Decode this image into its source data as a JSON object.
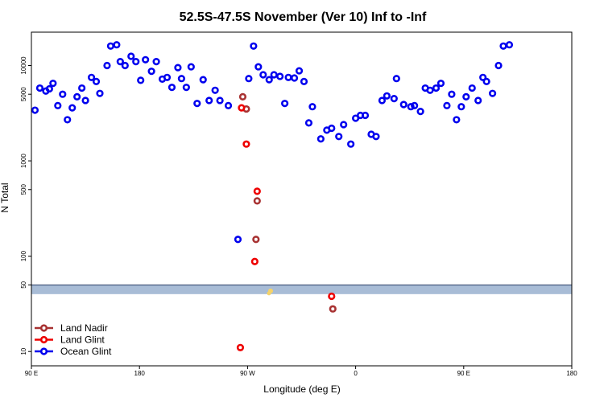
{
  "chart_data": {
    "type": "scatter",
    "title": "52.5S-47.5S November (Ver 10)   Inf to -Inf",
    "xlabel": "Longitude (deg E)",
    "ylabel": "N Total",
    "xlim": [
      -90,
      360
    ],
    "ylim_log10": [
      0.85,
      4.35
    ],
    "y_scale": "log",
    "x_ticks": [
      {
        "value": -90,
        "label": "90 E"
      },
      {
        "value": 0,
        "label": "180"
      },
      {
        "value": 90,
        "label": "90 W"
      },
      {
        "value": 180,
        "label": "0"
      },
      {
        "value": 270,
        "label": "90 E"
      },
      {
        "value": 360,
        "label": "180"
      }
    ],
    "y_ticks": [
      {
        "value": 10,
        "label": "10"
      },
      {
        "value": 50,
        "label": "50"
      },
      {
        "value": 100,
        "label": "100"
      },
      {
        "value": 500,
        "label": "500"
      },
      {
        "value": 1000,
        "label": "1000"
      },
      {
        "value": 5000,
        "label": "5000"
      },
      {
        "value": 10000,
        "label": "10000"
      }
    ],
    "threshold_band": {
      "low": 40,
      "high": 50,
      "label": "50"
    },
    "legend_position": "bottom-left",
    "series": [
      {
        "name": "Land Nadir",
        "color": "#a83232",
        "points": [
          [
            86,
            4700
          ],
          [
            89,
            3500
          ],
          [
            97,
            150
          ],
          [
            98,
            380
          ],
          [
            161,
            28
          ]
        ]
      },
      {
        "name": "Land Glint",
        "color": "#ee0000",
        "points": [
          [
            84,
            11
          ],
          [
            85,
            3600
          ],
          [
            89,
            1500
          ],
          [
            96,
            88
          ],
          [
            98,
            480
          ],
          [
            160,
            38
          ]
        ]
      },
      {
        "name": "Ocean Glint",
        "color": "#0000ee",
        "points": [
          [
            -87,
            3400
          ],
          [
            -83,
            5800
          ],
          [
            -78,
            5400
          ],
          [
            -75,
            5700
          ],
          [
            -72,
            6500
          ],
          [
            -68,
            3800
          ],
          [
            -64,
            5000
          ],
          [
            -60,
            2700
          ],
          [
            -56,
            3600
          ],
          [
            -52,
            4700
          ],
          [
            -48,
            5800
          ],
          [
            -45,
            4300
          ],
          [
            -40,
            7500
          ],
          [
            -36,
            6800
          ],
          [
            -33,
            5100
          ],
          [
            -27,
            10000
          ],
          [
            -24,
            16000
          ],
          [
            -19,
            16500
          ],
          [
            -16,
            11000
          ],
          [
            -12,
            10000
          ],
          [
            -7,
            12500
          ],
          [
            -3,
            11000
          ],
          [
            1,
            7000
          ],
          [
            5,
            11500
          ],
          [
            10,
            8700
          ],
          [
            14,
            11000
          ],
          [
            19,
            7200
          ],
          [
            23,
            7500
          ],
          [
            27,
            5900
          ],
          [
            32,
            9500
          ],
          [
            35,
            7300
          ],
          [
            39,
            5900
          ],
          [
            43,
            9700
          ],
          [
            48,
            4000
          ],
          [
            53,
            7100
          ],
          [
            58,
            4300
          ],
          [
            63,
            5500
          ],
          [
            67,
            4300
          ],
          [
            74,
            3800
          ],
          [
            82,
            150
          ],
          [
            91,
            7300
          ],
          [
            95,
            16000
          ],
          [
            99,
            9700
          ],
          [
            103,
            8000
          ],
          [
            108,
            7100
          ],
          [
            112,
            8000
          ],
          [
            117,
            7700
          ],
          [
            121,
            4000
          ],
          [
            124,
            7500
          ],
          [
            129,
            7400
          ],
          [
            133,
            8800
          ],
          [
            137,
            6800
          ],
          [
            141,
            2500
          ],
          [
            144,
            3700
          ],
          [
            151,
            1700
          ],
          [
            156,
            2100
          ],
          [
            160,
            2200
          ],
          [
            166,
            1800
          ],
          [
            170,
            2400
          ],
          [
            176,
            1500
          ],
          [
            180,
            2800
          ],
          [
            184,
            3000
          ],
          [
            188,
            3000
          ],
          [
            193,
            1900
          ],
          [
            197,
            1800
          ],
          [
            202,
            4300
          ],
          [
            206,
            4800
          ],
          [
            212,
            4500
          ],
          [
            214,
            7300
          ],
          [
            220,
            3900
          ],
          [
            226,
            3700
          ],
          [
            229,
            3800
          ],
          [
            234,
            3300
          ],
          [
            238,
            5800
          ],
          [
            242,
            5500
          ],
          [
            247,
            5800
          ],
          [
            251,
            6500
          ],
          [
            256,
            3800
          ],
          [
            260,
            5000
          ],
          [
            264,
            2700
          ],
          [
            268,
            3700
          ],
          [
            272,
            4700
          ],
          [
            277,
            5800
          ],
          [
            282,
            4300
          ],
          [
            286,
            7500
          ],
          [
            289,
            6800
          ],
          [
            294,
            5100
          ],
          [
            299,
            10000
          ],
          [
            303,
            16000
          ],
          [
            308,
            16500
          ]
        ]
      }
    ]
  }
}
